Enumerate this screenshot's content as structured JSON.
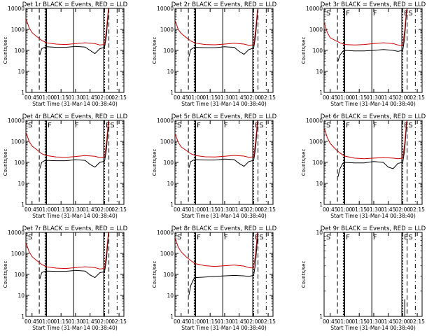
{
  "figure": {
    "xlabel": "Start Time (31-Mar-14 00:38:40)",
    "ylabel": "Counts/sec",
    "x_tick_labels": [
      "00:45",
      "01:00",
      "01:15",
      "01:30",
      "01:45",
      "02:00",
      "02:15"
    ],
    "y_tick_labels": [
      "1",
      "10",
      "100",
      "1000",
      "10000"
    ],
    "colors": {
      "events": "#000000",
      "lld": "#cc0000",
      "axes": "#000000",
      "background": "#ffffff"
    }
  },
  "chart_data": [
    {
      "type": "line",
      "title": "Det 1r BLACK = Events, RED = LLD",
      "xlabel": "Start Time (31-Mar-14 00:38:40)",
      "ylabel": "Counts/sec",
      "xlim": [
        "00:38:40",
        "02:20:00"
      ],
      "yscale": "log",
      "ylim": [
        1,
        10000
      ],
      "markers": [],
      "series": [
        {
          "name": "BLACK = Events",
          "color": "#000000",
          "x": [
            "00:53",
            "00:55",
            "00:58",
            "01:00",
            "01:10",
            "01:20",
            "01:30",
            "01:35",
            "01:40",
            "01:45",
            "01:50",
            "01:55",
            "02:00",
            "02:02",
            "02:04"
          ],
          "y": [
            60,
            120,
            140,
            150,
            140,
            140,
            155,
            150,
            145,
            100,
            70,
            120,
            140,
            500,
            8000
          ]
        },
        {
          "name": "RED = LLD",
          "color": "#cc0000",
          "x": [
            "00:39",
            "00:42",
            "00:45",
            "00:50",
            "00:55",
            "01:00",
            "01:10",
            "01:20",
            "01:30",
            "01:40",
            "01:50",
            "01:55",
            "02:00",
            "02:02",
            "02:04"
          ],
          "y": [
            3000,
            1200,
            700,
            450,
            300,
            230,
            200,
            190,
            210,
            230,
            210,
            180,
            190,
            1000,
            10000
          ]
        }
      ]
    },
    {
      "type": "line",
      "title": "Det 2r BLACK = Events, RED = LLD",
      "xlabel": "Start Time (31-Mar-14 00:38:40)",
      "ylabel": "Counts/sec",
      "xlim": [
        "00:38:40",
        "02:20:00"
      ],
      "yscale": "log",
      "ylim": [
        1,
        10000
      ],
      "markers": [],
      "series": [
        {
          "name": "BLACK = Events",
          "color": "#000000",
          "x": [
            "00:53",
            "00:55",
            "00:58",
            "01:00",
            "01:10",
            "01:20",
            "01:30",
            "01:35",
            "01:40",
            "01:45",
            "01:50",
            "01:55",
            "02:00",
            "02:02",
            "02:04"
          ],
          "y": [
            50,
            110,
            135,
            140,
            135,
            135,
            150,
            145,
            140,
            90,
            65,
            110,
            130,
            450,
            7000
          ]
        },
        {
          "name": "RED = LLD",
          "color": "#cc0000",
          "x": [
            "00:39",
            "00:42",
            "00:45",
            "00:50",
            "00:55",
            "01:00",
            "01:10",
            "01:20",
            "01:30",
            "01:40",
            "01:50",
            "01:55",
            "02:00",
            "02:02",
            "02:04"
          ],
          "y": [
            2500,
            1000,
            650,
            420,
            280,
            220,
            190,
            185,
            200,
            220,
            200,
            175,
            185,
            900,
            9000
          ]
        }
      ]
    },
    {
      "type": "line",
      "title": "Det 3r BLACK = Events, RED = LLD",
      "xlabel": "Start Time (31-Mar-14 00:38:40)",
      "ylabel": "Counts/sec",
      "xlim": [
        "00:38:40",
        "02:20:00"
      ],
      "yscale": "log",
      "ylim": [
        1,
        10000
      ],
      "markers": [
        "S",
        "F",
        "F",
        "ES"
      ],
      "series": [
        {
          "name": "BLACK = Events",
          "color": "#000000",
          "x": [
            "00:53",
            "00:55",
            "00:58",
            "01:00",
            "01:10",
            "01:20",
            "01:30",
            "01:40",
            "01:50",
            "01:55",
            "02:00",
            "02:02",
            "02:04"
          ],
          "y": [
            30,
            60,
            90,
            100,
            95,
            95,
            100,
            110,
            100,
            90,
            100,
            400,
            8000
          ]
        },
        {
          "name": "RED = LLD",
          "color": "#cc0000",
          "x": [
            "00:39",
            "00:42",
            "00:45",
            "00:50",
            "00:55",
            "01:00",
            "01:10",
            "01:20",
            "01:30",
            "01:40",
            "01:50",
            "01:55",
            "02:00",
            "02:02",
            "02:04"
          ],
          "y": [
            2000,
            700,
            400,
            300,
            230,
            190,
            180,
            190,
            210,
            230,
            210,
            180,
            170,
            900,
            9000
          ]
        }
      ]
    },
    {
      "type": "line",
      "title": "Det 4r BLACK = Events, RED = LLD",
      "xlabel": "Start Time (31-Mar-14 00:38:40)",
      "ylabel": "Counts/sec",
      "xlim": [
        "00:38:40",
        "02:20:00"
      ],
      "yscale": "log",
      "ylim": [
        1,
        10000
      ],
      "markers": [
        "S",
        "F",
        "F",
        "ES"
      ],
      "series": [
        {
          "name": "BLACK = Events",
          "color": "#000000",
          "x": [
            "00:53",
            "00:55",
            "00:58",
            "01:00",
            "01:10",
            "01:20",
            "01:30",
            "01:35",
            "01:40",
            "01:45",
            "01:50",
            "01:55",
            "02:00",
            "02:02",
            "02:04"
          ],
          "y": [
            50,
            100,
            120,
            125,
            120,
            120,
            135,
            130,
            125,
            80,
            60,
            100,
            115,
            400,
            7000
          ]
        },
        {
          "name": "RED = LLD",
          "color": "#cc0000",
          "x": [
            "00:39",
            "00:42",
            "00:45",
            "00:50",
            "00:55",
            "01:00",
            "01:10",
            "01:20",
            "01:30",
            "01:40",
            "01:50",
            "01:55",
            "02:00",
            "02:02",
            "02:04"
          ],
          "y": [
            2500,
            1000,
            600,
            400,
            260,
            210,
            180,
            175,
            190,
            210,
            195,
            170,
            180,
            900,
            9000
          ]
        }
      ]
    },
    {
      "type": "line",
      "title": "Det 5r BLACK = Events, RED = LLD",
      "xlabel": "Start Time (31-Mar-14 00:38:40)",
      "ylabel": "Counts/sec",
      "xlim": [
        "00:38:40",
        "02:20:00"
      ],
      "yscale": "log",
      "ylim": [
        1,
        10000
      ],
      "markers": [
        "S",
        "F",
        "F",
        "ES"
      ],
      "series": [
        {
          "name": "BLACK = Events",
          "color": "#000000",
          "x": [
            "00:53",
            "00:55",
            "00:58",
            "01:00",
            "01:10",
            "01:20",
            "01:30",
            "01:35",
            "01:40",
            "01:45",
            "01:50",
            "01:55",
            "02:00",
            "02:02",
            "02:04"
          ],
          "y": [
            55,
            110,
            130,
            135,
            130,
            130,
            145,
            140,
            135,
            90,
            65,
            110,
            125,
            450,
            7500
          ]
        },
        {
          "name": "RED = LLD",
          "color": "#cc0000",
          "x": [
            "00:39",
            "00:42",
            "00:45",
            "00:50",
            "00:55",
            "01:00",
            "01:10",
            "01:20",
            "01:30",
            "01:40",
            "01:50",
            "01:55",
            "02:00",
            "02:02",
            "02:04"
          ],
          "y": [
            2200,
            900,
            550,
            380,
            260,
            210,
            185,
            180,
            195,
            215,
            200,
            175,
            185,
            950,
            9500
          ]
        }
      ]
    },
    {
      "type": "line",
      "title": "Det 6r BLACK = Events, RED = LLD",
      "xlabel": "Start Time (31-Mar-14 00:38:40)",
      "ylabel": "Counts/sec",
      "xlim": [
        "00:38:40",
        "02:20:00"
      ],
      "yscale": "log",
      "ylim": [
        1,
        10000
      ],
      "markers": [
        "S",
        "F",
        "F",
        "ES"
      ],
      "series": [
        {
          "name": "BLACK = Events",
          "color": "#000000",
          "x": [
            "00:53",
            "00:55",
            "00:58",
            "01:00",
            "01:10",
            "01:20",
            "01:30",
            "01:35",
            "01:40",
            "01:45",
            "01:50",
            "01:55",
            "02:00",
            "02:02",
            "02:04"
          ],
          "y": [
            20,
            50,
            90,
            100,
            95,
            95,
            110,
            105,
            100,
            60,
            50,
            90,
            100,
            400,
            7000
          ]
        },
        {
          "name": "RED = LLD",
          "color": "#cc0000",
          "x": [
            "00:39",
            "00:42",
            "00:45",
            "00:50",
            "00:55",
            "01:00",
            "01:10",
            "01:20",
            "01:30",
            "01:40",
            "01:50",
            "01:55",
            "02:00",
            "02:02",
            "02:04"
          ],
          "y": [
            4000,
            1500,
            800,
            450,
            280,
            200,
            160,
            150,
            160,
            170,
            160,
            150,
            160,
            800,
            9000
          ]
        }
      ]
    },
    {
      "type": "line",
      "title": "Det 7r BLACK = Events, RED = LLD",
      "xlabel": "Start Time (31-Mar-14 00:38:40)",
      "ylabel": "Counts/sec",
      "xlim": [
        "00:38:40",
        "02:20:00"
      ],
      "yscale": "log",
      "ylim": [
        1,
        10000
      ],
      "markers": [
        "S"
      ],
      "series": [
        {
          "name": "BLACK = Events",
          "color": "#000000",
          "x": [
            "00:53",
            "00:55",
            "00:58",
            "01:00",
            "01:10",
            "01:20",
            "01:30",
            "01:35",
            "01:40",
            "01:45",
            "01:50",
            "01:55",
            "02:00",
            "02:02",
            "02:04"
          ],
          "y": [
            60,
            120,
            140,
            145,
            140,
            140,
            155,
            150,
            145,
            95,
            70,
            120,
            135,
            500,
            8000
          ]
        },
        {
          "name": "RED = LLD",
          "color": "#cc0000",
          "x": [
            "00:39",
            "00:42",
            "00:45",
            "00:50",
            "00:55",
            "01:00",
            "01:10",
            "01:20",
            "01:30",
            "01:40",
            "01:50",
            "01:55",
            "02:00",
            "02:02",
            "02:04"
          ],
          "y": [
            3000,
            1200,
            700,
            450,
            300,
            230,
            200,
            190,
            210,
            230,
            210,
            180,
            190,
            1000,
            10000
          ]
        }
      ]
    },
    {
      "type": "line",
      "title": "Det 8r BLACK = Events, RED = LLD",
      "xlabel": "Start Time (31-Mar-14 00:38:40)",
      "ylabel": "Counts/sec",
      "xlim": [
        "00:38:40",
        "02:20:00"
      ],
      "yscale": "log",
      "ylim": [
        1,
        10000
      ],
      "markers": [
        "S",
        "F",
        "F",
        "ES"
      ],
      "series": [
        {
          "name": "BLACK = Events",
          "color": "#000000",
          "x": [
            "00:53",
            "00:55",
            "00:58",
            "01:00",
            "01:10",
            "01:20",
            "01:30",
            "01:40",
            "01:50",
            "01:55",
            "02:00",
            "02:02",
            "02:04"
          ],
          "y": [
            10,
            30,
            60,
            70,
            75,
            80,
            85,
            90,
            85,
            80,
            90,
            350,
            6000
          ]
        },
        {
          "name": "RED = LLD",
          "color": "#cc0000",
          "x": [
            "00:39",
            "00:42",
            "00:45",
            "00:50",
            "00:55",
            "01:00",
            "01:10",
            "01:20",
            "01:30",
            "01:40",
            "01:50",
            "01:55",
            "02:00",
            "02:02",
            "02:04"
          ],
          "y": [
            5000,
            2000,
            1200,
            700,
            450,
            320,
            260,
            240,
            260,
            280,
            250,
            210,
            200,
            1000,
            10000
          ]
        }
      ]
    },
    {
      "type": "line",
      "title": "Det 9r BLACK = Events, RED = LLD",
      "xlabel": "Start Time (31-Mar-14 00:38:40)",
      "ylabel": "Counts/sec",
      "xlim": [
        "00:38:40",
        "02:20:00"
      ],
      "yscale": "log",
      "ylim": [
        1,
        10
      ],
      "y_tick_labels": [
        "1",
        "10"
      ],
      "markers": [
        "S",
        "F",
        "F",
        "ES"
      ],
      "series": [
        {
          "name": "BLACK = Events",
          "color": "#000000",
          "x": [
            "02:02",
            "02:02",
            "02:02"
          ],
          "y": [
            1,
            1.6,
            1
          ]
        },
        {
          "name": "RED = LLD",
          "color": "#cc0000",
          "x": [],
          "y": []
        }
      ]
    }
  ]
}
